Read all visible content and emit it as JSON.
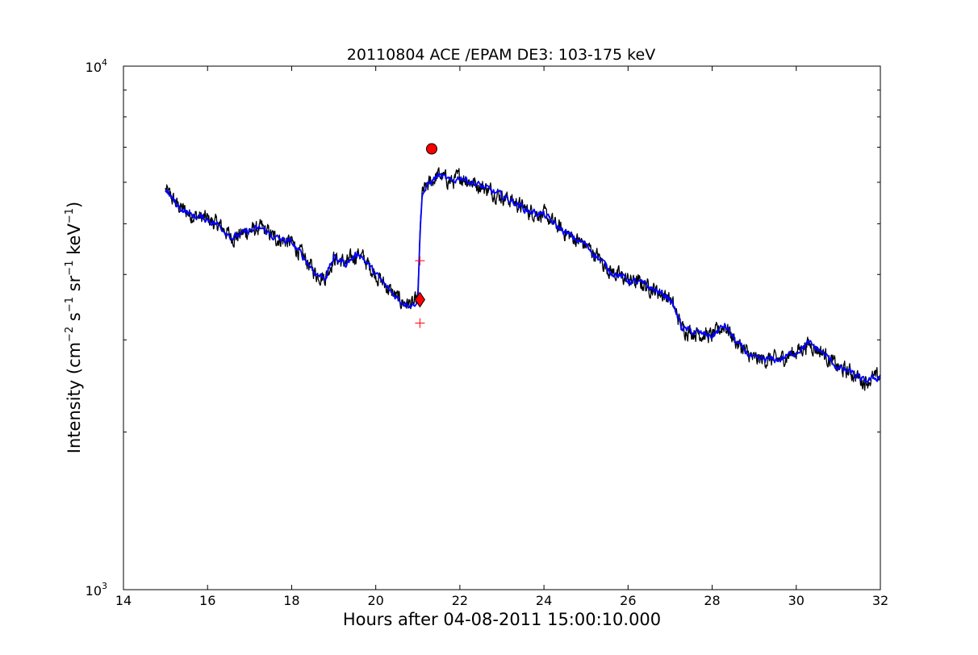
{
  "chart_data": {
    "type": "line",
    "title": "20110804 ACE /EPAM DE3: 103-175 keV",
    "xlabel": "Hours after 04-08-2011 15:00:10.000",
    "ylabel": {
      "prefix": "Intensity (cm",
      "exp1": "−2",
      "mid1": " s",
      "exp2": "−1",
      "mid2": " sr",
      "exp3": "−1",
      "mid3": " keV",
      "exp4": "−1",
      "suffix": ")"
    },
    "xlim": [
      14,
      32
    ],
    "ylim": [
      1000,
      10000
    ],
    "yscale": "log",
    "x_ticks": [
      14,
      16,
      18,
      20,
      22,
      24,
      26,
      28,
      30,
      32
    ],
    "x_tick_labels": [
      "14",
      "16",
      "18",
      "20",
      "22",
      "24",
      "26",
      "28",
      "30",
      "32"
    ],
    "y_ticks": [
      {
        "value": 1000,
        "base": "10",
        "exp": "3"
      },
      {
        "value": 10000,
        "base": "10",
        "exp": "4"
      }
    ],
    "grid": false,
    "series": [
      {
        "role": "raw",
        "color": "#000000",
        "x": [
          15.0,
          15.3,
          15.6,
          16.0,
          16.3,
          16.6,
          17.0,
          17.3,
          17.6,
          18.0,
          18.3,
          18.6,
          18.8,
          19.0,
          19.3,
          19.6,
          20.0,
          20.3,
          20.6,
          20.9,
          21.0,
          21.05,
          21.1,
          21.3,
          21.5,
          21.8,
          22.0,
          22.3,
          22.6,
          23.0,
          23.3,
          23.6,
          24.0,
          24.3,
          24.6,
          25.0,
          25.3,
          25.6,
          26.0,
          26.3,
          26.6,
          27.0,
          27.3,
          27.6,
          28.0,
          28.3,
          28.6,
          29.0,
          29.3,
          29.6,
          30.0,
          30.3,
          30.6,
          31.0,
          31.3,
          31.6,
          32.0
        ],
        "y": [
          5800,
          5400,
          5200,
          5100,
          4950,
          4700,
          4850,
          4900,
          4700,
          4600,
          4300,
          4000,
          3950,
          4300,
          4200,
          4400,
          4000,
          3750,
          3550,
          3500,
          3600,
          4700,
          5700,
          6000,
          6200,
          6000,
          6150,
          6000,
          5850,
          5650,
          5500,
          5300,
          5200,
          4950,
          4750,
          4550,
          4300,
          4050,
          3900,
          3850,
          3750,
          3600,
          3150,
          3100,
          3050,
          3200,
          2950,
          2750,
          2750,
          2750,
          2850,
          2950,
          2850,
          2650,
          2600,
          2500,
          2550
        ],
        "noise": 0.028
      },
      {
        "role": "smoothed",
        "color": "#0000ff",
        "x": [
          15.0,
          15.3,
          15.6,
          16.0,
          16.3,
          16.6,
          17.0,
          17.3,
          17.6,
          18.0,
          18.3,
          18.6,
          18.8,
          19.0,
          19.3,
          19.6,
          20.0,
          20.3,
          20.6,
          20.9,
          21.0,
          21.05,
          21.1,
          21.3,
          21.5,
          21.8,
          22.0,
          22.3,
          22.6,
          23.0,
          23.3,
          23.6,
          24.0,
          24.3,
          24.6,
          25.0,
          25.3,
          25.6,
          26.0,
          26.3,
          26.6,
          27.0,
          27.3,
          27.6,
          28.0,
          28.3,
          28.6,
          29.0,
          29.3,
          29.6,
          30.0,
          30.3,
          30.6,
          31.0,
          31.3,
          31.6,
          32.0
        ],
        "y": [
          5800,
          5400,
          5200,
          5100,
          4950,
          4700,
          4850,
          4900,
          4700,
          4600,
          4300,
          4000,
          3950,
          4300,
          4200,
          4400,
          4000,
          3750,
          3550,
          3500,
          3600,
          4700,
          5700,
          6000,
          6200,
          6000,
          6150,
          6000,
          5850,
          5650,
          5500,
          5300,
          5200,
          4950,
          4750,
          4550,
          4300,
          4050,
          3900,
          3850,
          3750,
          3600,
          3150,
          3100,
          3050,
          3200,
          2950,
          2750,
          2750,
          2750,
          2850,
          2950,
          2850,
          2650,
          2600,
          2500,
          2550
        ],
        "noise": 0.013
      }
    ],
    "markers": [
      {
        "name": "onset",
        "shape": "diamond",
        "color": "#ff0000",
        "x": 21.05,
        "y": 3580
      },
      {
        "name": "onset-upper-error",
        "shape": "plus",
        "color": "#ff0000",
        "x": 21.05,
        "y": 4250
      },
      {
        "name": "onset-lower-error",
        "shape": "plus",
        "color": "#ff0000",
        "x": 21.05,
        "y": 3230
      },
      {
        "name": "peak",
        "shape": "circle",
        "color": "#ff0000",
        "x": 21.33,
        "y": 6950
      }
    ]
  }
}
